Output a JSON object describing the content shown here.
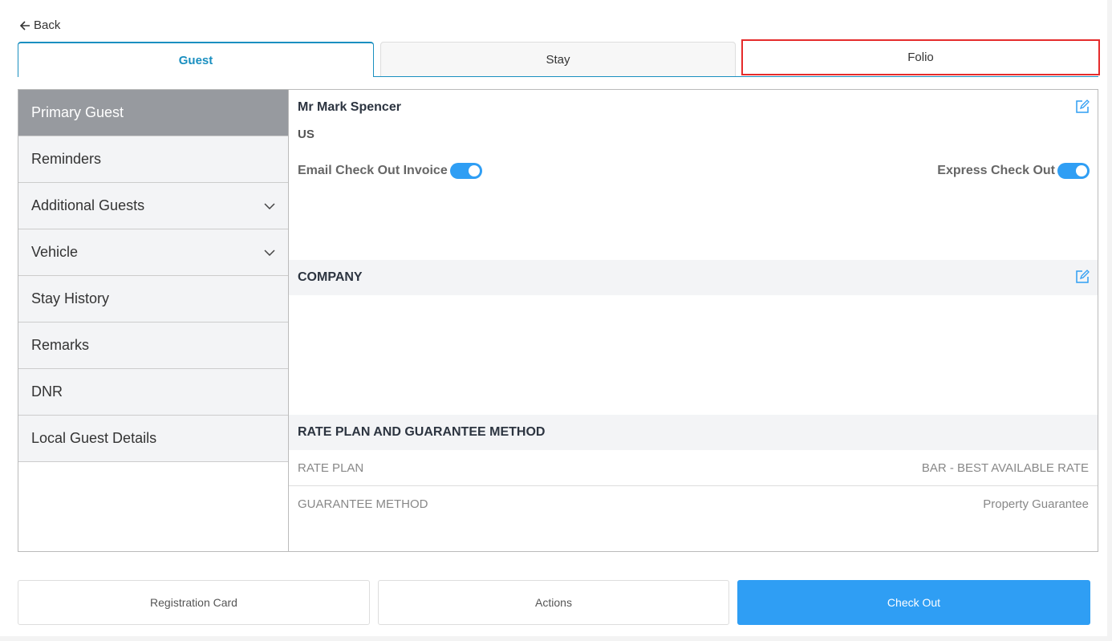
{
  "back_label": "Back",
  "tabs": [
    {
      "label": "Guest"
    },
    {
      "label": "Stay"
    },
    {
      "label": "Folio"
    }
  ],
  "sidebar": {
    "items": [
      {
        "label": "Primary Guest"
      },
      {
        "label": "Reminders"
      },
      {
        "label": "Additional Guests"
      },
      {
        "label": "Vehicle"
      },
      {
        "label": "Stay History"
      },
      {
        "label": "Remarks"
      },
      {
        "label": "DNR"
      },
      {
        "label": "Local Guest Details"
      }
    ]
  },
  "guest": {
    "name": "Mr Mark Spencer",
    "country": "US",
    "email_invoice_label": "Email Check Out Invoice",
    "email_invoice_on": true,
    "express_label": "Express Check Out",
    "express_on": true
  },
  "company": {
    "title": "COMPANY"
  },
  "rate": {
    "title": "RATE PLAN AND GUARANTEE METHOD",
    "rows": [
      {
        "label": "RATE PLAN",
        "value": "BAR - BEST AVAILABLE RATE"
      },
      {
        "label": "GUARANTEE METHOD",
        "value": "Property Guarantee"
      }
    ]
  },
  "buttons": {
    "registration": "Registration Card",
    "actions": "Actions",
    "checkout": "Check Out"
  },
  "colors": {
    "accent": "#2f9ef4",
    "tab_active": "#1a8fc0",
    "highlight": "#e52b2b"
  }
}
